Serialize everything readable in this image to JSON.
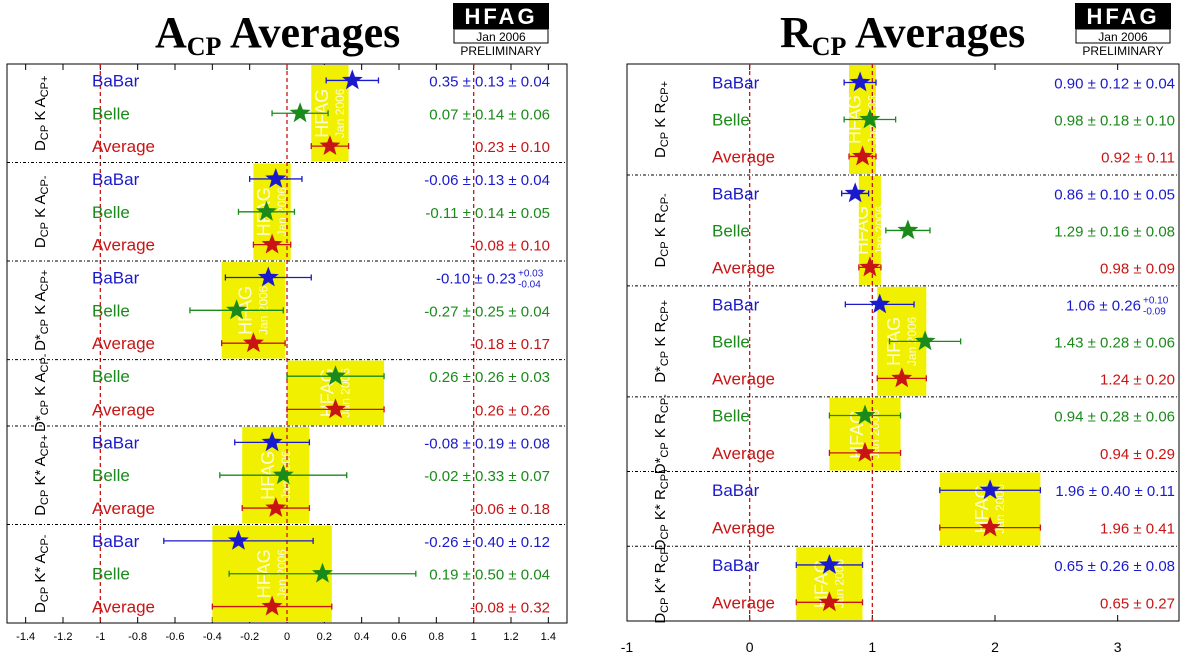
{
  "hfag": {
    "logo": "HFAG",
    "date": "Jan 2006",
    "status": "PRELIMINARY",
    "watermark": "HFAG",
    "watermark_date": "Jan 2006"
  },
  "colors": {
    "BaBar": "#1a1acc",
    "Belle": "#1a8a1a",
    "Average": "#c81414",
    "box": "#f0f000"
  },
  "chart_data": [
    {
      "type": "scatter",
      "title": "A",
      "title_sub": "CP",
      "title_rest": " Averages",
      "xlim": [
        -1.5,
        1.5
      ],
      "xticks": [
        "-1.4",
        "-1.2",
        "-1",
        "-0.8",
        "-0.6",
        "-0.4",
        "-0.2",
        "0",
        "0.2",
        "0.4",
        "0.6",
        "0.8",
        "1",
        "1.2",
        "1.4"
      ],
      "xtick_values": [
        -1.4,
        -1.2,
        -1,
        -0.8,
        -0.6,
        -0.4,
        -0.2,
        0,
        0.2,
        0.4,
        0.6,
        0.8,
        1,
        1.2,
        1.4
      ],
      "reference_lines": [
        -1,
        0,
        1
      ],
      "groups": [
        {
          "label": "D_{CP} K A_{CP+}",
          "rows": [
            {
              "exp": "BaBar",
              "value": 0.35,
              "err": 0.14,
              "text": "0.35 ± 0.13 ± 0.04"
            },
            {
              "exp": "Belle",
              "value": 0.07,
              "err": 0.15,
              "text": "0.07 ± 0.14 ± 0.06"
            },
            {
              "exp": "Average",
              "value": 0.23,
              "err": 0.1,
              "text": "0.23 ± 0.10"
            }
          ]
        },
        {
          "label": "D_{CP} K A_{CP-}",
          "rows": [
            {
              "exp": "BaBar",
              "value": -0.06,
              "err": 0.14,
              "text": "-0.06 ± 0.13 ± 0.04"
            },
            {
              "exp": "Belle",
              "value": -0.11,
              "err": 0.15,
              "text": "-0.11 ± 0.14 ± 0.05"
            },
            {
              "exp": "Average",
              "value": -0.08,
              "err": 0.1,
              "text": "-0.08 ± 0.10"
            }
          ]
        },
        {
          "label": "D*_{CP} K A_{CP+}",
          "rows": [
            {
              "exp": "BaBar",
              "value": -0.1,
              "err": 0.23,
              "text": "-0.10 ± 0.23",
              "sup": "+0.03",
              "sub": "-0.04"
            },
            {
              "exp": "Belle",
              "value": -0.27,
              "err": 0.25,
              "text": "-0.27 ± 0.25 ± 0.04"
            },
            {
              "exp": "Average",
              "value": -0.18,
              "err": 0.17,
              "text": "-0.18 ± 0.17"
            }
          ]
        },
        {
          "label": "D*_{CP} K A_{CP-}",
          "rows": [
            {
              "exp": "Belle",
              "value": 0.26,
              "err": 0.26,
              "text": "0.26 ± 0.26 ± 0.03"
            },
            {
              "exp": "Average",
              "value": 0.26,
              "err": 0.26,
              "text": "0.26 ± 0.26"
            }
          ]
        },
        {
          "label": "D_{CP} K* A_{CP+}",
          "rows": [
            {
              "exp": "BaBar",
              "value": -0.08,
              "err": 0.2,
              "text": "-0.08 ± 0.19 ± 0.08"
            },
            {
              "exp": "Belle",
              "value": -0.02,
              "err": 0.34,
              "text": "-0.02 ± 0.33 ± 0.07"
            },
            {
              "exp": "Average",
              "value": -0.06,
              "err": 0.18,
              "text": "-0.06 ± 0.18"
            }
          ]
        },
        {
          "label": "D_{CP} K* A_{CP-}",
          "rows": [
            {
              "exp": "BaBar",
              "value": -0.26,
              "err": 0.4,
              "text": "-0.26 ± 0.40 ± 0.12"
            },
            {
              "exp": "Belle",
              "value": 0.19,
              "err": 0.5,
              "text": "0.19 ± 0.50 ± 0.04"
            },
            {
              "exp": "Average",
              "value": -0.08,
              "err": 0.32,
              "text": "-0.08 ± 0.32"
            }
          ]
        }
      ]
    },
    {
      "type": "scatter",
      "title": "R",
      "title_sub": "CP",
      "title_rest": " Averages",
      "xlim": [
        -1,
        3.5
      ],
      "xticks": [
        "-1",
        "0",
        "1",
        "2",
        "3"
      ],
      "xtick_values": [
        -1,
        0,
        1,
        2,
        3
      ],
      "reference_lines": [
        0,
        1
      ],
      "groups": [
        {
          "label": "D_{CP} K R_{CP+}",
          "rows": [
            {
              "exp": "BaBar",
              "value": 0.9,
              "err": 0.13,
              "text": "0.90 ± 0.12 ± 0.04"
            },
            {
              "exp": "Belle",
              "value": 0.98,
              "err": 0.21,
              "text": "0.98 ± 0.18 ± 0.10"
            },
            {
              "exp": "Average",
              "value": 0.92,
              "err": 0.11,
              "text": "0.92 ± 0.11"
            }
          ]
        },
        {
          "label": "D_{CP} K R_{CP-}",
          "rows": [
            {
              "exp": "BaBar",
              "value": 0.86,
              "err": 0.11,
              "text": "0.86 ± 0.10 ± 0.05"
            },
            {
              "exp": "Belle",
              "value": 1.29,
              "err": 0.18,
              "text": "1.29 ± 0.16 ± 0.08"
            },
            {
              "exp": "Average",
              "value": 0.98,
              "err": 0.09,
              "text": "0.98 ± 0.09"
            }
          ]
        },
        {
          "label": "D*_{CP} K R_{CP+}",
          "rows": [
            {
              "exp": "BaBar",
              "value": 1.06,
              "err": 0.28,
              "text": "1.06 ± 0.26",
              "sup": "+0.10",
              "sub": "-0.09"
            },
            {
              "exp": "Belle",
              "value": 1.43,
              "err": 0.29,
              "text": "1.43 ± 0.28 ± 0.06"
            },
            {
              "exp": "Average",
              "value": 1.24,
              "err": 0.2,
              "text": "1.24 ± 0.20"
            }
          ]
        },
        {
          "label": "D*_{CP} K R_{CP-}",
          "rows": [
            {
              "exp": "Belle",
              "value": 0.94,
              "err": 0.29,
              "text": "0.94 ± 0.28 ± 0.06"
            },
            {
              "exp": "Average",
              "value": 0.94,
              "err": 0.29,
              "text": "0.94 ± 0.29"
            }
          ]
        },
        {
          "label": "D_{CP} K* R_{CP+}",
          "rows": [
            {
              "exp": "BaBar",
              "value": 1.96,
              "err": 0.41,
              "text": "1.96 ± 0.40 ± 0.11"
            },
            {
              "exp": "Average",
              "value": 1.96,
              "err": 0.41,
              "text": "1.96 ± 0.41"
            }
          ]
        },
        {
          "label": "D_{CP} K* R_{CP-}",
          "rows": [
            {
              "exp": "BaBar",
              "value": 0.65,
              "err": 0.27,
              "text": "0.65 ± 0.26 ± 0.08"
            },
            {
              "exp": "Average",
              "value": 0.65,
              "err": 0.27,
              "text": "0.65 ± 0.27"
            }
          ]
        }
      ]
    }
  ]
}
